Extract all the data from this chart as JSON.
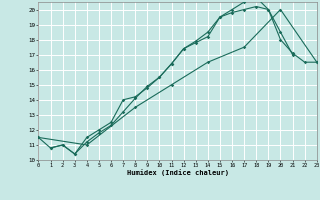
{
  "bg_color": "#c8e8e5",
  "grid_color": "#ffffff",
  "line_color": "#1a6b5a",
  "xlabel": "Humidex (Indice chaleur)",
  "xlim": [
    0,
    23
  ],
  "ylim": [
    10,
    20.5
  ],
  "xticks": [
    0,
    1,
    2,
    3,
    4,
    5,
    6,
    7,
    8,
    9,
    10,
    11,
    12,
    13,
    14,
    15,
    16,
    17,
    18,
    19,
    20,
    21,
    22,
    23
  ],
  "yticks": [
    10,
    11,
    12,
    13,
    14,
    15,
    16,
    17,
    18,
    19,
    20
  ],
  "series": [
    {
      "x": [
        0,
        1,
        2,
        3,
        4,
        5,
        6,
        7,
        8,
        9,
        10,
        11,
        12,
        13,
        14,
        15,
        16,
        17,
        18,
        19,
        20,
        21
      ],
      "y": [
        11.5,
        10.8,
        11.0,
        10.4,
        11.5,
        12.0,
        12.5,
        14.0,
        14.2,
        14.8,
        15.5,
        16.4,
        17.4,
        17.8,
        18.2,
        19.5,
        19.8,
        20.0,
        20.2,
        20.0,
        18.5,
        17.0
      ]
    },
    {
      "x": [
        1,
        2,
        3,
        4,
        5,
        6,
        7,
        8,
        9,
        10,
        11,
        12,
        13,
        14,
        15,
        16,
        17,
        18,
        19,
        20,
        21,
        22,
        23
      ],
      "y": [
        10.8,
        11.0,
        10.4,
        11.2,
        11.8,
        12.3,
        13.2,
        14.1,
        14.9,
        15.5,
        16.4,
        17.4,
        17.9,
        18.5,
        19.5,
        20.0,
        20.5,
        20.8,
        20.0,
        18.0,
        17.1,
        16.5,
        16.5
      ]
    },
    {
      "x": [
        0,
        4,
        8,
        11,
        14,
        17,
        20,
        23
      ],
      "y": [
        11.5,
        11.0,
        13.5,
        15.0,
        16.5,
        17.5,
        20.0,
        16.5
      ]
    }
  ]
}
